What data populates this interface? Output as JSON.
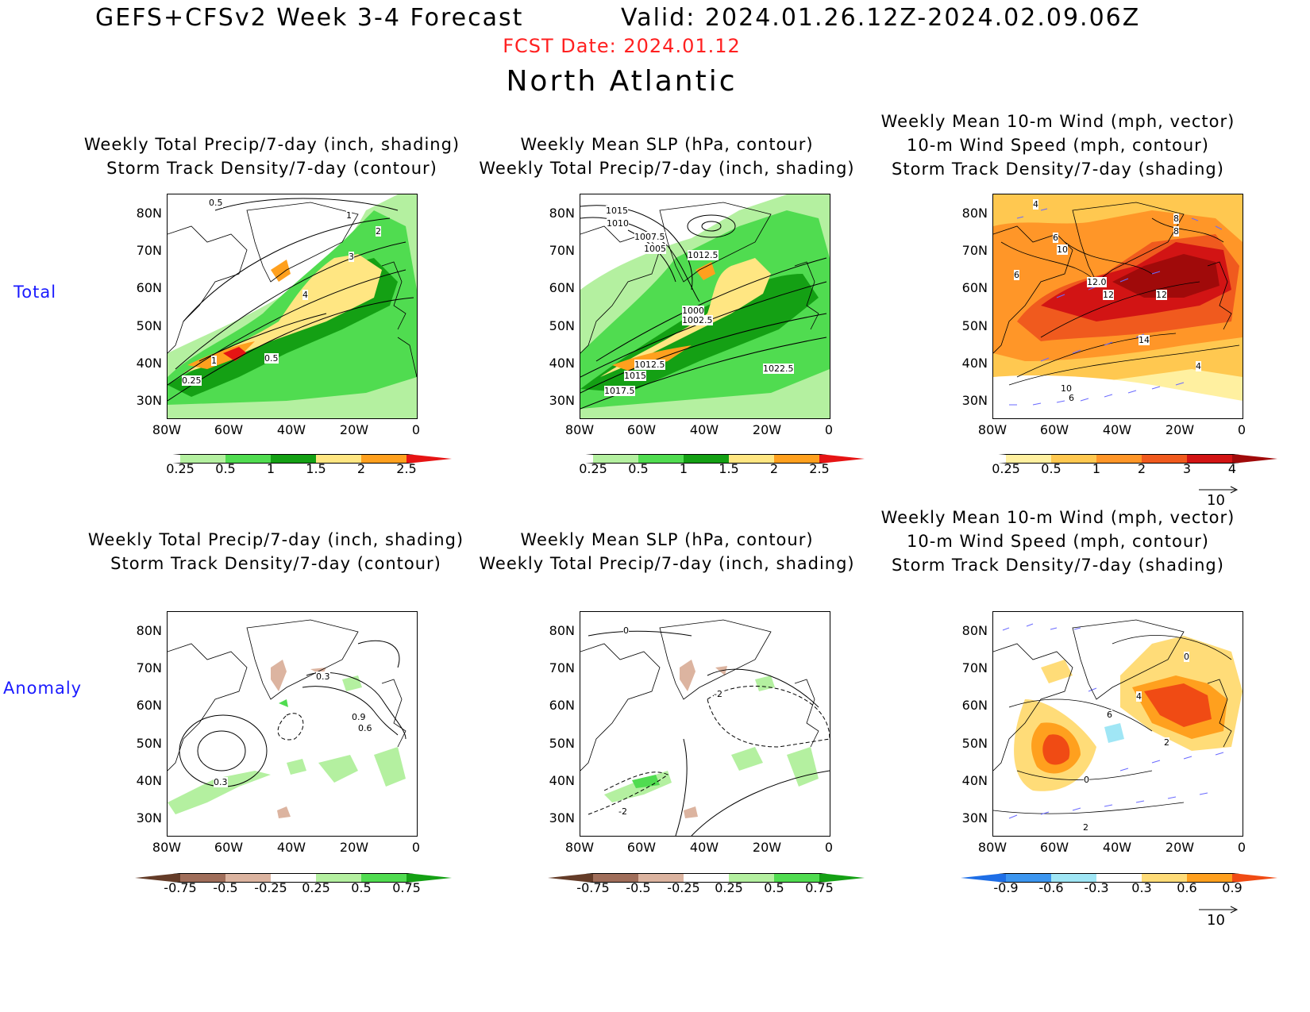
{
  "header": {
    "title": "GEFS+CFSv2 Week 3-4 Forecast",
    "valid": "Valid: 2024.01.26.12Z-2024.02.09.06Z",
    "fcst_date": "FCST Date: 2024.01.12",
    "region": "North Atlantic"
  },
  "rows": {
    "total": "Total",
    "anomaly": "Anomaly"
  },
  "panel_titles": {
    "precip": [
      "Weekly Total Precip/7-day (inch, shading)",
      "Storm Track Density/7-day (contour)"
    ],
    "slp": [
      "Weekly Mean SLP (hPa, contour)",
      "Weekly Total Precip/7-day (inch, shading)"
    ],
    "wind": [
      "Weekly Mean 10-m Wind (mph, vector)",
      "10-m Wind Speed (mph, contour)",
      "Storm Track Density/7-day (shading)"
    ]
  },
  "axes": {
    "lat_ticks": [
      "80N",
      "70N",
      "60N",
      "50N",
      "40N",
      "30N"
    ],
    "lon_ticks": [
      "80W",
      "60W",
      "40W",
      "20W",
      "0"
    ]
  },
  "colorbars": {
    "precip_total": {
      "labels": [
        "0.25",
        "0.5",
        "1",
        "1.5",
        "2",
        "2.5"
      ],
      "colors": [
        "#ffffff",
        "#b4f0a0",
        "#50dc50",
        "#14a014",
        "#ffe682",
        "#ffa01e",
        "#e61414"
      ]
    },
    "std_total": {
      "labels": [
        "0.25",
        "0.5",
        "1",
        "2",
        "3",
        "4"
      ],
      "colors": [
        "#ffffff",
        "#fff0a0",
        "#ffc850",
        "#ff9628",
        "#f05a1e",
        "#d21414",
        "#a00a0a"
      ]
    },
    "precip_anom": {
      "labels": [
        "-0.75",
        "-0.5",
        "-0.25",
        "0.25",
        "0.5",
        "0.75"
      ],
      "colors": [
        "#643c28",
        "#a06e5a",
        "#dcb4a0",
        "#ffffff",
        "#b4f0a0",
        "#50dc50",
        "#14a014"
      ]
    },
    "std_anom": {
      "labels": [
        "-0.9",
        "-0.6",
        "-0.3",
        "0.3",
        "0.6",
        "0.9"
      ],
      "colors": [
        "#1e6ee6",
        "#3c96f0",
        "#a0e6f5",
        "#ffffff",
        "#ffdc78",
        "#ffa01e",
        "#f04b14"
      ]
    }
  },
  "vector_ref": "10",
  "contour_labels": {
    "precip_total": [
      "0.5",
      "1",
      "2",
      "3",
      "4",
      "1",
      "0.5",
      "0.25"
    ],
    "slp_total": [
      "1015",
      "1010",
      "1007.5",
      "1005",
      "1012.5",
      "1000",
      "1002.5",
      "1012.5",
      "1015",
      "1017.5",
      "1022.5"
    ],
    "wind_total": [
      "4",
      "8",
      "10",
      "6",
      "12.0",
      "12",
      "12",
      "14",
      "8",
      "6",
      "4",
      "10",
      "6"
    ],
    "precip_anom": [
      "0.3",
      "0.9",
      "0.6",
      "0.3"
    ],
    "slp_anom": [
      "0",
      "-2",
      "-2"
    ],
    "wind_anom": [
      "0",
      "4",
      "2",
      "0",
      "6",
      "2"
    ]
  }
}
